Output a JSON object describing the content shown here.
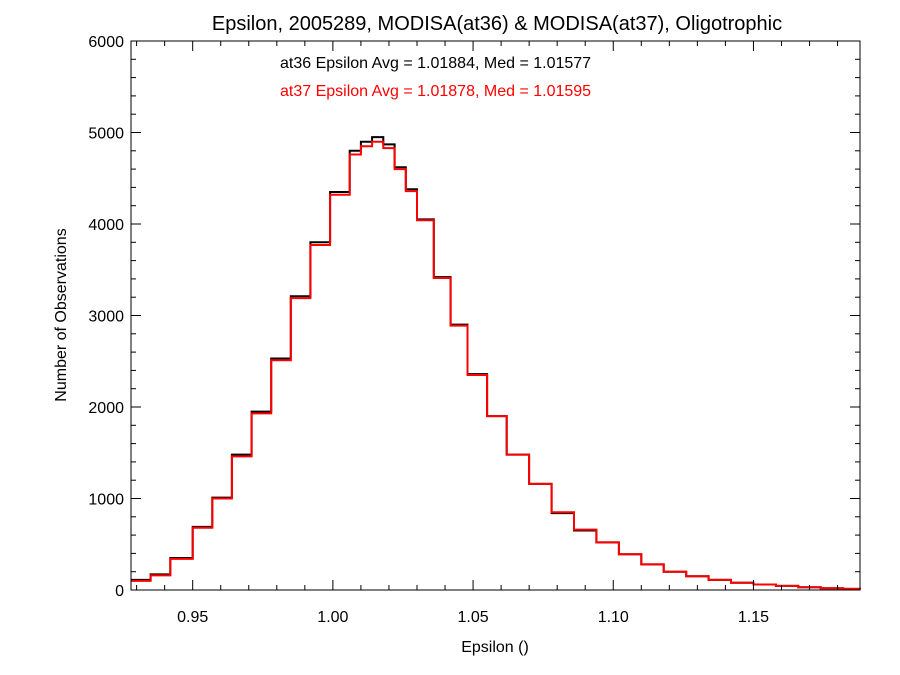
{
  "chart_data": {
    "type": "line",
    "title": "Epsilon, 2005289, MODISA(at36) & MODISA(at37), Oligotrophic",
    "xlabel": "Epsilon ()",
    "ylabel": "Number of Observations",
    "xlim": [
      0.928,
      1.188
    ],
    "ylim": [
      0,
      6000
    ],
    "x_ticks": [
      0.95,
      1.0,
      1.05,
      1.1,
      1.15
    ],
    "x_tick_labels": [
      "0.95",
      "1.00",
      "1.05",
      "1.10",
      "1.15"
    ],
    "y_ticks": [
      0,
      1000,
      2000,
      3000,
      4000,
      5000,
      6000
    ],
    "y_tick_labels": [
      "0",
      "1000",
      "2000",
      "3000",
      "4000",
      "5000",
      "6000"
    ],
    "grid": false,
    "annotations": [
      {
        "text": "at36 Epsilon Avg = 1.01884, Med = 1.01577",
        "color": "#000000"
      },
      {
        "text": "at37 Epsilon Avg = 1.01878, Med = 1.01595",
        "color": "#ff0000"
      }
    ],
    "series": [
      {
        "color": "#000000",
        "x": [
          0.928,
          0.935,
          0.942,
          0.95,
          0.957,
          0.964,
          0.971,
          0.978,
          0.985,
          0.992,
          0.999,
          1.006,
          1.01,
          1.014,
          1.018,
          1.022,
          1.026,
          1.03,
          1.036,
          1.042,
          1.048,
          1.055,
          1.062,
          1.07,
          1.078,
          1.086,
          1.094,
          1.102,
          1.11,
          1.118,
          1.126,
          1.134,
          1.142,
          1.15,
          1.158,
          1.166,
          1.174,
          1.182,
          1.188
        ],
        "y": [
          110,
          170,
          350,
          690,
          1010,
          1480,
          1950,
          2530,
          3210,
          3800,
          4350,
          4800,
          4900,
          4950,
          4870,
          4620,
          4380,
          4050,
          3420,
          2900,
          2360,
          1900,
          1480,
          1160,
          840,
          650,
          520,
          390,
          280,
          200,
          150,
          110,
          80,
          60,
          45,
          30,
          20,
          12,
          8
        ]
      },
      {
        "color": "#ff0000",
        "x": [
          0.928,
          0.935,
          0.942,
          0.95,
          0.957,
          0.964,
          0.971,
          0.978,
          0.985,
          0.992,
          0.999,
          1.006,
          1.01,
          1.014,
          1.018,
          1.022,
          1.026,
          1.03,
          1.036,
          1.042,
          1.048,
          1.055,
          1.062,
          1.07,
          1.078,
          1.086,
          1.094,
          1.102,
          1.11,
          1.118,
          1.126,
          1.134,
          1.142,
          1.15,
          1.158,
          1.166,
          1.174,
          1.182,
          1.188
        ],
        "y": [
          100,
          160,
          340,
          680,
          1000,
          1460,
          1930,
          2510,
          3190,
          3770,
          4320,
          4760,
          4850,
          4900,
          4830,
          4600,
          4360,
          4040,
          3410,
          2890,
          2350,
          1900,
          1480,
          1160,
          850,
          660,
          520,
          390,
          280,
          200,
          150,
          110,
          80,
          60,
          45,
          30,
          20,
          12,
          8
        ]
      }
    ]
  }
}
